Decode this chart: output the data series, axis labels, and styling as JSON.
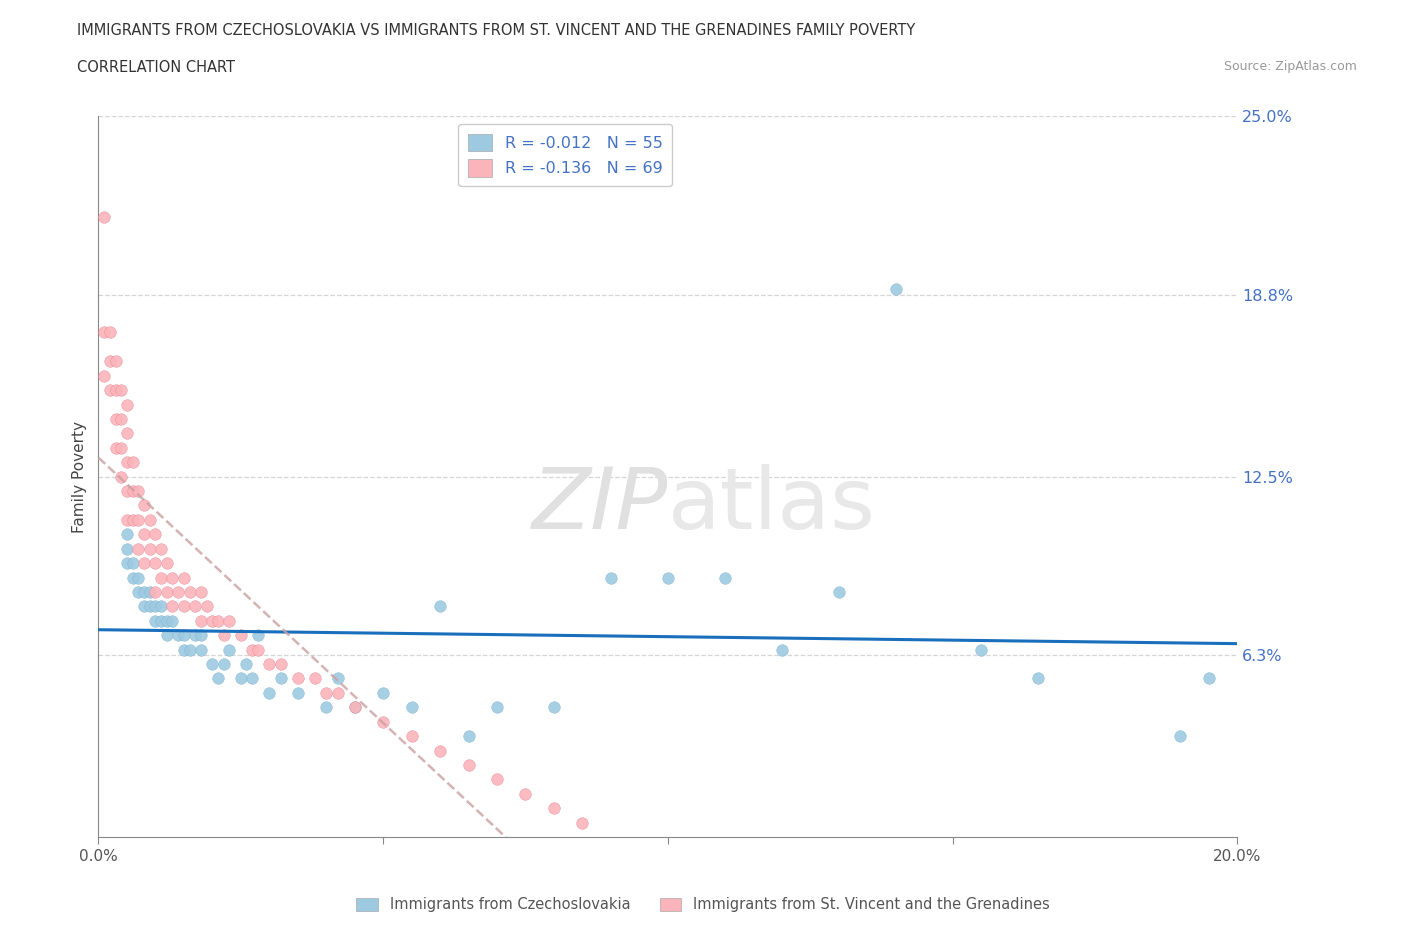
{
  "title_line1": "IMMIGRANTS FROM CZECHOSLOVAKIA VS IMMIGRANTS FROM ST. VINCENT AND THE GRENADINES FAMILY POVERTY",
  "title_line2": "CORRELATION CHART",
  "source_text": "Source: ZipAtlas.com",
  "ylabel": "Family Poverty",
  "xmin": 0.0,
  "xmax": 0.2,
  "ymin": 0.0,
  "ymax": 0.25,
  "yticks": [
    0.0,
    0.063,
    0.125,
    0.188,
    0.25
  ],
  "ytick_labels": [
    "",
    "6.3%",
    "12.5%",
    "18.8%",
    "25.0%"
  ],
  "xticks": [
    0.0,
    0.05,
    0.1,
    0.15,
    0.2
  ],
  "xtick_labels": [
    "0.0%",
    "",
    "",
    "",
    "20.0%"
  ],
  "color_blue": "#9ecae1",
  "color_pink": "#fbb4b9",
  "trend_blue": "#1a6fbc",
  "trend_pink": "#c9a0a0",
  "legend_r1": "R = -0.012   N = 55",
  "legend_r2": "R = -0.136   N = 69",
  "legend_label1": "Immigrants from Czechoslovakia",
  "legend_label2": "Immigrants from St. Vincent and the Grenadines",
  "blue_x": [
    0.005,
    0.005,
    0.005,
    0.006,
    0.006,
    0.007,
    0.007,
    0.008,
    0.008,
    0.009,
    0.009,
    0.01,
    0.01,
    0.011,
    0.011,
    0.012,
    0.012,
    0.013,
    0.014,
    0.015,
    0.015,
    0.016,
    0.017,
    0.018,
    0.018,
    0.02,
    0.021,
    0.022,
    0.023,
    0.025,
    0.026,
    0.027,
    0.028,
    0.03,
    0.032,
    0.035,
    0.04,
    0.042,
    0.045,
    0.05,
    0.055,
    0.06,
    0.065,
    0.07,
    0.08,
    0.09,
    0.1,
    0.11,
    0.12,
    0.13,
    0.14,
    0.155,
    0.165,
    0.19,
    0.195
  ],
  "blue_y": [
    0.095,
    0.1,
    0.105,
    0.09,
    0.095,
    0.085,
    0.09,
    0.08,
    0.085,
    0.08,
    0.085,
    0.075,
    0.08,
    0.075,
    0.08,
    0.07,
    0.075,
    0.075,
    0.07,
    0.065,
    0.07,
    0.065,
    0.07,
    0.065,
    0.07,
    0.06,
    0.055,
    0.06,
    0.065,
    0.055,
    0.06,
    0.055,
    0.07,
    0.05,
    0.055,
    0.05,
    0.045,
    0.055,
    0.045,
    0.05,
    0.045,
    0.08,
    0.035,
    0.045,
    0.045,
    0.09,
    0.09,
    0.09,
    0.065,
    0.085,
    0.19,
    0.065,
    0.055,
    0.035,
    0.055
  ],
  "pink_x": [
    0.001,
    0.001,
    0.001,
    0.002,
    0.002,
    0.002,
    0.003,
    0.003,
    0.003,
    0.003,
    0.004,
    0.004,
    0.004,
    0.004,
    0.005,
    0.005,
    0.005,
    0.005,
    0.005,
    0.006,
    0.006,
    0.006,
    0.007,
    0.007,
    0.007,
    0.008,
    0.008,
    0.008,
    0.009,
    0.009,
    0.01,
    0.01,
    0.01,
    0.011,
    0.011,
    0.012,
    0.012,
    0.013,
    0.013,
    0.014,
    0.015,
    0.015,
    0.016,
    0.017,
    0.018,
    0.018,
    0.019,
    0.02,
    0.021,
    0.022,
    0.023,
    0.025,
    0.027,
    0.028,
    0.03,
    0.032,
    0.035,
    0.038,
    0.04,
    0.042,
    0.045,
    0.05,
    0.055,
    0.06,
    0.065,
    0.07,
    0.075,
    0.08,
    0.085
  ],
  "pink_y": [
    0.215,
    0.175,
    0.16,
    0.175,
    0.165,
    0.155,
    0.165,
    0.155,
    0.145,
    0.135,
    0.155,
    0.145,
    0.135,
    0.125,
    0.15,
    0.14,
    0.13,
    0.12,
    0.11,
    0.13,
    0.12,
    0.11,
    0.12,
    0.11,
    0.1,
    0.115,
    0.105,
    0.095,
    0.11,
    0.1,
    0.105,
    0.095,
    0.085,
    0.1,
    0.09,
    0.095,
    0.085,
    0.09,
    0.08,
    0.085,
    0.09,
    0.08,
    0.085,
    0.08,
    0.085,
    0.075,
    0.08,
    0.075,
    0.075,
    0.07,
    0.075,
    0.07,
    0.065,
    0.065,
    0.06,
    0.06,
    0.055,
    0.055,
    0.05,
    0.05,
    0.045,
    0.04,
    0.035,
    0.03,
    0.025,
    0.02,
    0.015,
    0.01,
    0.005
  ]
}
